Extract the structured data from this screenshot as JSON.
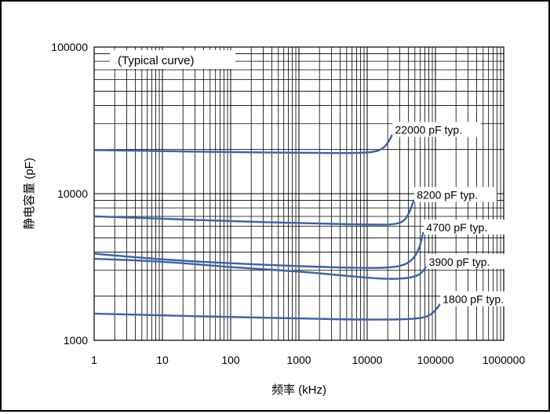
{
  "chart_data": {
    "type": "line",
    "annotation": "(Typical curve)",
    "xlabel": "频率 (kHz)",
    "ylabel": "静电容量 (pF)",
    "x_scale": "log",
    "y_scale": "log",
    "xlim": [
      1,
      1000000
    ],
    "ylim": [
      1000,
      100000
    ],
    "x_ticks": [
      1,
      10,
      100,
      1000,
      10000,
      100000,
      1000000
    ],
    "x_tick_labels": [
      "1",
      "10",
      "100",
      "1000",
      "10000",
      "100000",
      "1000000"
    ],
    "y_ticks": [
      1000,
      10000,
      100000
    ],
    "y_tick_labels": [
      "1000",
      "10000",
      "100000"
    ],
    "grid": true,
    "line_color": "#3a63a8",
    "series": [
      {
        "name": "22000 pF  typ.",
        "points": [
          [
            1,
            19800
          ],
          [
            10,
            19500
          ],
          [
            100,
            19200
          ],
          [
            1000,
            19000
          ],
          [
            5000,
            18900
          ],
          [
            12000,
            19100
          ],
          [
            17000,
            20200
          ],
          [
            20500,
            22500
          ],
          [
            23000,
            25000
          ]
        ]
      },
      {
        "name": "8200 pF  typ.",
        "points": [
          [
            1,
            7000
          ],
          [
            10,
            6750
          ],
          [
            100,
            6500
          ],
          [
            1000,
            6300
          ],
          [
            10000,
            6150
          ],
          [
            25000,
            6150
          ],
          [
            35000,
            6500
          ],
          [
            42000,
            7500
          ],
          [
            48000,
            9000
          ]
        ]
      },
      {
        "name": "4700 pF  typ.",
        "points": [
          [
            1,
            3900
          ],
          [
            10,
            3550
          ],
          [
            100,
            3350
          ],
          [
            1000,
            3200
          ],
          [
            10000,
            3100
          ],
          [
            28000,
            3150
          ],
          [
            45000,
            3450
          ],
          [
            58000,
            4200
          ],
          [
            66000,
            5400
          ]
        ]
      },
      {
        "name": "3900 pF  typ.",
        "points": [
          [
            1,
            3600
          ],
          [
            10,
            3450
          ],
          [
            100,
            3150
          ],
          [
            1000,
            2950
          ],
          [
            5000,
            2750
          ],
          [
            15000,
            2630
          ],
          [
            30000,
            2620
          ],
          [
            48000,
            2700
          ],
          [
            62000,
            2850
          ],
          [
            72000,
            3150
          ]
        ]
      },
      {
        "name": "1800 pF  typ.",
        "points": [
          [
            1,
            1520
          ],
          [
            10,
            1480
          ],
          [
            100,
            1440
          ],
          [
            1000,
            1410
          ],
          [
            10000,
            1380
          ],
          [
            40000,
            1390
          ],
          [
            70000,
            1430
          ],
          [
            90000,
            1520
          ],
          [
            105000,
            1650
          ],
          [
            115000,
            1750
          ]
        ]
      }
    ]
  }
}
